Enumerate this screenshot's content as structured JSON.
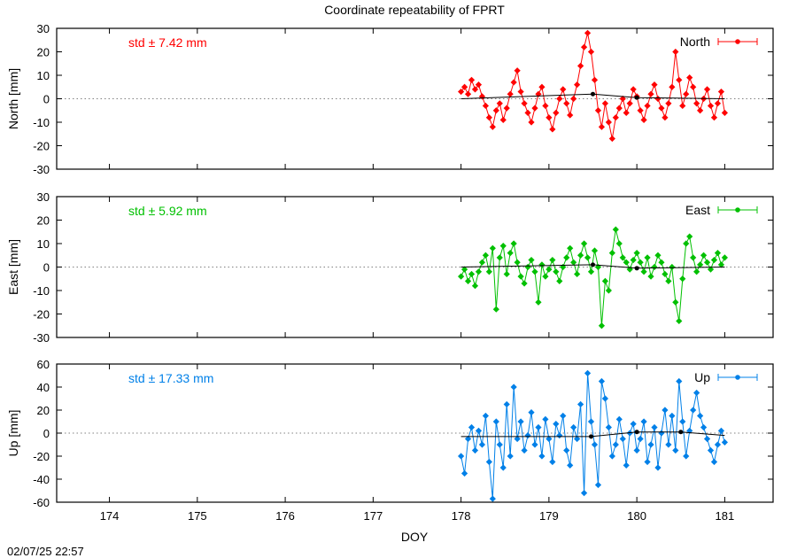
{
  "title": "Coordinate repeatability of FPRT",
  "xlabel": "DOY",
  "timestamp": "02/07/25 22:57",
  "xlim": [
    173.4,
    181.55
  ],
  "x_ticks": [
    174,
    175,
    176,
    177,
    178,
    179,
    180,
    181
  ],
  "colors": {
    "north": "#ff0000",
    "east": "#00c000",
    "up": "#0080e8",
    "trend": "#000000",
    "zero_line": "#808080"
  },
  "chart_data": [
    {
      "type": "line",
      "name": "North",
      "ylabel": "North [mm]",
      "ylim": [
        -30,
        30
      ],
      "y_ticks": [
        -30,
        -20,
        -10,
        0,
        10,
        20,
        30
      ],
      "std_text": "std ± 7.42 mm",
      "legend": "North",
      "legend_position": "top-right",
      "trend": [
        [
          178.0,
          0
        ],
        [
          179.5,
          2
        ],
        [
          180.0,
          0.5
        ],
        [
          181.0,
          0
        ]
      ],
      "points": [
        [
          178.0,
          3
        ],
        [
          178.04,
          5
        ],
        [
          178.08,
          2
        ],
        [
          178.12,
          8
        ],
        [
          178.16,
          4
        ],
        [
          178.2,
          6
        ],
        [
          178.24,
          1
        ],
        [
          178.28,
          -3
        ],
        [
          178.32,
          -8
        ],
        [
          178.36,
          -12
        ],
        [
          178.4,
          -5
        ],
        [
          178.44,
          -2
        ],
        [
          178.48,
          -9
        ],
        [
          178.52,
          -4
        ],
        [
          178.56,
          2
        ],
        [
          178.6,
          7
        ],
        [
          178.64,
          12
        ],
        [
          178.68,
          3
        ],
        [
          178.72,
          -2
        ],
        [
          178.76,
          -6
        ],
        [
          178.8,
          -10
        ],
        [
          178.84,
          -4
        ],
        [
          178.88,
          2
        ],
        [
          178.92,
          5
        ],
        [
          178.96,
          -3
        ],
        [
          179.0,
          -8
        ],
        [
          179.04,
          -13
        ],
        [
          179.08,
          -6
        ],
        [
          179.12,
          0
        ],
        [
          179.16,
          4
        ],
        [
          179.2,
          -2
        ],
        [
          179.24,
          -7
        ],
        [
          179.28,
          0
        ],
        [
          179.32,
          6
        ],
        [
          179.36,
          14
        ],
        [
          179.4,
          22
        ],
        [
          179.44,
          28
        ],
        [
          179.48,
          20
        ],
        [
          179.52,
          8
        ],
        [
          179.56,
          -5
        ],
        [
          179.6,
          -12
        ],
        [
          179.64,
          -2
        ],
        [
          179.68,
          -10
        ],
        [
          179.72,
          -17
        ],
        [
          179.76,
          -8
        ],
        [
          179.8,
          -4
        ],
        [
          179.84,
          0
        ],
        [
          179.88,
          -6
        ],
        [
          179.92,
          -2
        ],
        [
          179.96,
          4
        ],
        [
          180.0,
          1
        ],
        [
          180.04,
          -5
        ],
        [
          180.08,
          -9
        ],
        [
          180.12,
          -3
        ],
        [
          180.16,
          2
        ],
        [
          180.2,
          6
        ],
        [
          180.24,
          0
        ],
        [
          180.28,
          -4
        ],
        [
          180.32,
          -8
        ],
        [
          180.36,
          -2
        ],
        [
          180.4,
          5
        ],
        [
          180.44,
          20
        ],
        [
          180.48,
          8
        ],
        [
          180.52,
          -3
        ],
        [
          180.56,
          2
        ],
        [
          180.6,
          9
        ],
        [
          180.64,
          5
        ],
        [
          180.68,
          -2
        ],
        [
          180.72,
          -5
        ],
        [
          180.76,
          0
        ],
        [
          180.8,
          4
        ],
        [
          180.84,
          -3
        ],
        [
          180.88,
          -8
        ],
        [
          180.92,
          -2
        ],
        [
          180.96,
          3
        ],
        [
          181.0,
          -6
        ]
      ]
    },
    {
      "type": "line",
      "name": "East",
      "ylabel": "East [mm]",
      "ylim": [
        -30,
        30
      ],
      "y_ticks": [
        -30,
        -20,
        -10,
        0,
        10,
        20,
        30
      ],
      "std_text": "std ± 5.92 mm",
      "legend": "East",
      "legend_position": "top-right",
      "trend": [
        [
          178.0,
          0
        ],
        [
          179.5,
          1
        ],
        [
          180.0,
          -0.5
        ],
        [
          181.0,
          0
        ]
      ],
      "points": [
        [
          178.0,
          -4
        ],
        [
          178.04,
          -1
        ],
        [
          178.08,
          -6
        ],
        [
          178.12,
          -3
        ],
        [
          178.16,
          -8
        ],
        [
          178.2,
          -2
        ],
        [
          178.24,
          2
        ],
        [
          178.28,
          5
        ],
        [
          178.32,
          -2
        ],
        [
          178.36,
          8
        ],
        [
          178.4,
          -18
        ],
        [
          178.44,
          4
        ],
        [
          178.48,
          9
        ],
        [
          178.52,
          -3
        ],
        [
          178.56,
          6
        ],
        [
          178.6,
          10
        ],
        [
          178.64,
          2
        ],
        [
          178.68,
          -4
        ],
        [
          178.72,
          -7
        ],
        [
          178.76,
          0
        ],
        [
          178.8,
          3
        ],
        [
          178.84,
          -2
        ],
        [
          178.88,
          -15
        ],
        [
          178.92,
          1
        ],
        [
          178.96,
          -4
        ],
        [
          179.0,
          -1
        ],
        [
          179.04,
          3
        ],
        [
          179.08,
          -2
        ],
        [
          179.12,
          -6
        ],
        [
          179.16,
          0
        ],
        [
          179.2,
          4
        ],
        [
          179.24,
          8
        ],
        [
          179.28,
          2
        ],
        [
          179.32,
          -3
        ],
        [
          179.36,
          5
        ],
        [
          179.4,
          10
        ],
        [
          179.44,
          4
        ],
        [
          179.48,
          -2
        ],
        [
          179.52,
          7
        ],
        [
          179.56,
          0
        ],
        [
          179.6,
          -25
        ],
        [
          179.64,
          -6
        ],
        [
          179.68,
          -10
        ],
        [
          179.72,
          6
        ],
        [
          179.76,
          16
        ],
        [
          179.8,
          10
        ],
        [
          179.84,
          4
        ],
        [
          179.88,
          2
        ],
        [
          179.92,
          -1
        ],
        [
          179.96,
          3
        ],
        [
          180.0,
          6
        ],
        [
          180.04,
          2
        ],
        [
          180.08,
          -2
        ],
        [
          180.12,
          4
        ],
        [
          180.16,
          -4
        ],
        [
          180.2,
          0
        ],
        [
          180.24,
          5
        ],
        [
          180.28,
          2
        ],
        [
          180.32,
          -3
        ],
        [
          180.36,
          -6
        ],
        [
          180.4,
          0
        ],
        [
          180.44,
          -15
        ],
        [
          180.48,
          -23
        ],
        [
          180.52,
          -5
        ],
        [
          180.56,
          10
        ],
        [
          180.6,
          13
        ],
        [
          180.64,
          4
        ],
        [
          180.68,
          -2
        ],
        [
          180.72,
          1
        ],
        [
          180.76,
          5
        ],
        [
          180.8,
          2
        ],
        [
          180.84,
          -1
        ],
        [
          180.88,
          3
        ],
        [
          180.92,
          6
        ],
        [
          180.96,
          1
        ],
        [
          181.0,
          4
        ]
      ]
    },
    {
      "type": "line",
      "name": "Up",
      "ylabel": "Up [mm]",
      "ylim": [
        -60,
        60
      ],
      "y_ticks": [
        -60,
        -40,
        -20,
        0,
        20,
        40,
        60
      ],
      "std_text": "std ± 17.33 mm",
      "legend": "Up",
      "legend_position": "top-right",
      "trend": [
        [
          178.0,
          -3
        ],
        [
          179.48,
          -3
        ],
        [
          180.0,
          1
        ],
        [
          180.5,
          1
        ],
        [
          181.0,
          -2
        ]
      ],
      "points": [
        [
          178.0,
          -20
        ],
        [
          178.04,
          -35
        ],
        [
          178.08,
          -5
        ],
        [
          178.12,
          5
        ],
        [
          178.16,
          -15
        ],
        [
          178.2,
          2
        ],
        [
          178.24,
          -10
        ],
        [
          178.28,
          15
        ],
        [
          178.32,
          -25
        ],
        [
          178.36,
          -57
        ],
        [
          178.4,
          10
        ],
        [
          178.44,
          -10
        ],
        [
          178.48,
          -30
        ],
        [
          178.52,
          25
        ],
        [
          178.56,
          -20
        ],
        [
          178.6,
          40
        ],
        [
          178.64,
          -5
        ],
        [
          178.68,
          10
        ],
        [
          178.72,
          -15
        ],
        [
          178.76,
          -2
        ],
        [
          178.8,
          18
        ],
        [
          178.84,
          -10
        ],
        [
          178.88,
          5
        ],
        [
          178.92,
          -20
        ],
        [
          178.96,
          12
        ],
        [
          179.0,
          -5
        ],
        [
          179.04,
          -25
        ],
        [
          179.08,
          8
        ],
        [
          179.12,
          -2
        ],
        [
          179.16,
          15
        ],
        [
          179.2,
          -15
        ],
        [
          179.24,
          -28
        ],
        [
          179.28,
          5
        ],
        [
          179.32,
          -5
        ],
        [
          179.36,
          25
        ],
        [
          179.4,
          -52
        ],
        [
          179.44,
          52
        ],
        [
          179.48,
          10
        ],
        [
          179.52,
          -10
        ],
        [
          179.56,
          -45
        ],
        [
          179.6,
          45
        ],
        [
          179.64,
          30
        ],
        [
          179.68,
          5
        ],
        [
          179.72,
          -20
        ],
        [
          179.76,
          -10
        ],
        [
          179.8,
          12
        ],
        [
          179.84,
          -5
        ],
        [
          179.88,
          -28
        ],
        [
          179.92,
          0
        ],
        [
          179.96,
          8
        ],
        [
          180.0,
          -15
        ],
        [
          180.04,
          -5
        ],
        [
          180.08,
          10
        ],
        [
          180.12,
          -25
        ],
        [
          180.16,
          -10
        ],
        [
          180.2,
          5
        ],
        [
          180.24,
          -30
        ],
        [
          180.28,
          0
        ],
        [
          180.32,
          20
        ],
        [
          180.36,
          -10
        ],
        [
          180.4,
          15
        ],
        [
          180.44,
          -15
        ],
        [
          180.48,
          45
        ],
        [
          180.52,
          10
        ],
        [
          180.56,
          -20
        ],
        [
          180.6,
          2
        ],
        [
          180.64,
          20
        ],
        [
          180.68,
          35
        ],
        [
          180.72,
          15
        ],
        [
          180.76,
          5
        ],
        [
          180.8,
          -5
        ],
        [
          180.84,
          -15
        ],
        [
          180.88,
          -25
        ],
        [
          180.92,
          -10
        ],
        [
          180.96,
          2
        ],
        [
          181.0,
          -8
        ]
      ]
    }
  ]
}
